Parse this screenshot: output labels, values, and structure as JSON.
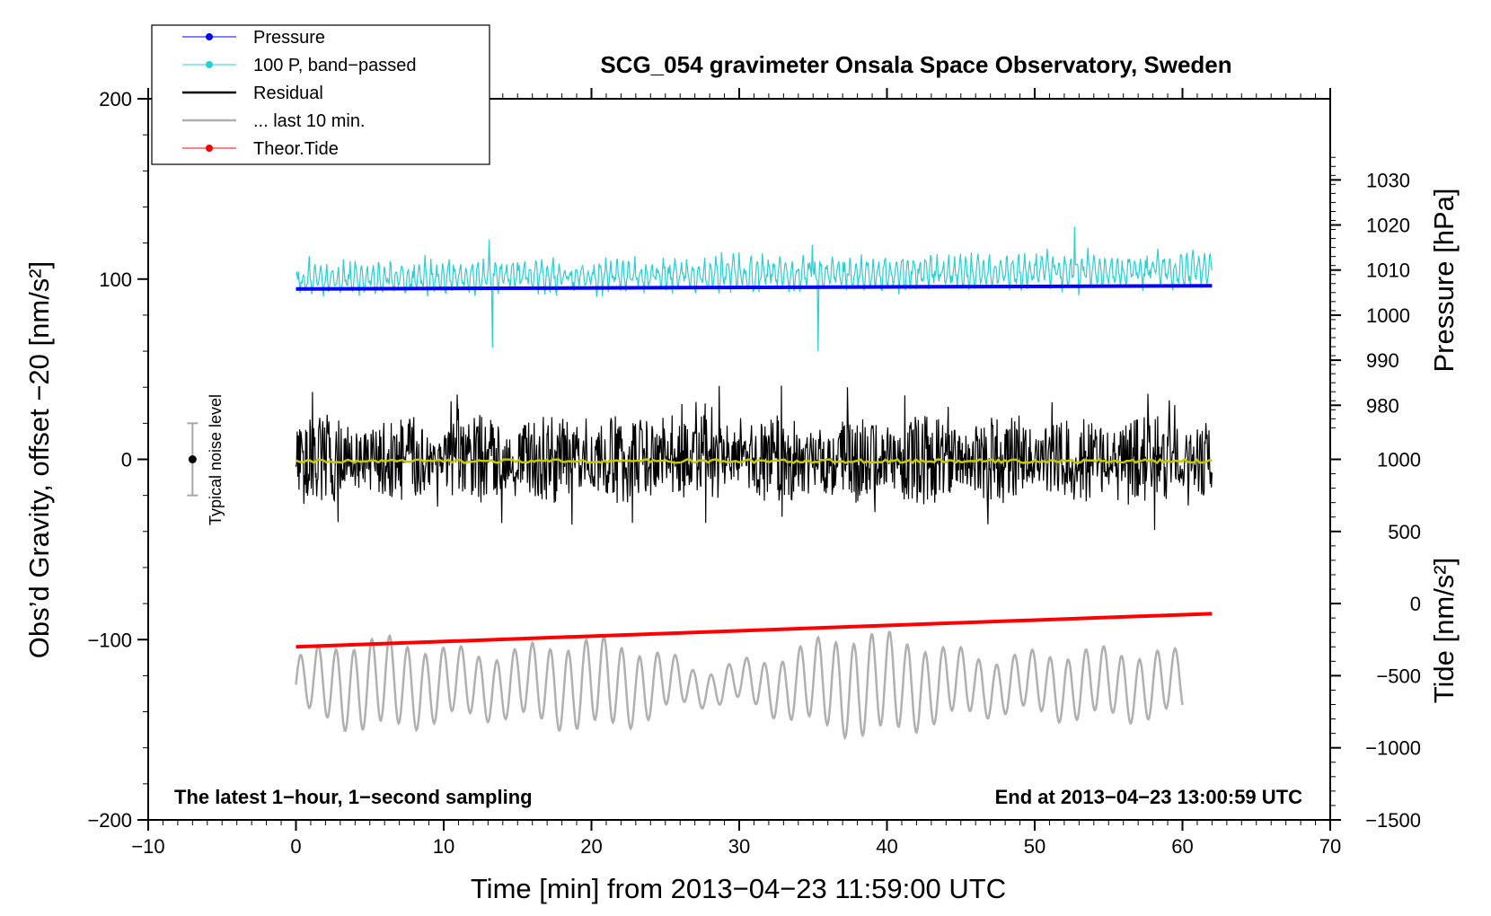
{
  "chart_data": {
    "type": "line",
    "title": "SCG_054 gravimeter Onsala Space Observatory, Sweden",
    "xlabel": "Time [min] from 2013−04−23 11:59:00 UTC",
    "ylabel_left": "Obs’d Gravity, offset −20 [nm/s²]",
    "ylabel_right_pressure": "Pressure [hPa]",
    "ylabel_right_tide": "Tide [nm/s²]",
    "xlim": [
      -10,
      70
    ],
    "ylim": [
      -200,
      200
    ],
    "x_ticks": [
      "−10",
      "0",
      "10",
      "20",
      "30",
      "40",
      "50",
      "60",
      "70"
    ],
    "y_ticks_left": [
      "−200",
      "−100",
      "0",
      "100",
      "200"
    ],
    "y_ticks_pressure": [
      "980",
      "990",
      "1000",
      "1010",
      "1020",
      "1030"
    ],
    "y_ticks_tide": [
      "−1500",
      "−1000",
      "−500",
      "0",
      "500",
      "1000"
    ],
    "pressure_scale": {
      "hPa": [
        980,
        1030
      ],
      "left_equiv": [
        30,
        155
      ]
    },
    "tide_scale": {
      "nms2": [
        -1500,
        1000
      ],
      "left_equiv": [
        -200,
        0
      ]
    },
    "legend": [
      {
        "label": "Pressure",
        "color": "#0000ff"
      },
      {
        "label": "100 P, band−passed",
        "color": "#27d0d3"
      },
      {
        "label": "Residual",
        "color": "#000000"
      },
      {
        "label": "... last 10 min.",
        "color": "#b0b0b0"
      },
      {
        "label": "Theor.Tide",
        "color": "#ff0000"
      }
    ],
    "series": [
      {
        "name": "Pressure",
        "color": "#0000ff",
        "x_range": [
          0,
          62
        ],
        "start_hPa": 1005.8,
        "end_hPa": 1006.5
      },
      {
        "name": "100 P, band−passed",
        "color": "#27d0d3",
        "x_range": [
          0,
          62
        ],
        "center": 100,
        "amplitude": 8
      },
      {
        "name": "Residual",
        "color": "#000000",
        "x_range": [
          0,
          62
        ],
        "center": 0,
        "amplitude": 25
      },
      {
        "name": "Residual smoothed",
        "color": "#c8c800",
        "x_range": [
          0,
          62
        ],
        "center": -1
      },
      {
        "name": "... last 10 min.",
        "color": "#b0b0b0",
        "x_range": [
          0,
          60
        ],
        "center": -125,
        "amplitude": 20
      },
      {
        "name": "Theor.Tide",
        "color": "#ff0000",
        "x_range": [
          0,
          62
        ],
        "start_nms2": -300,
        "end_nms2": -70
      }
    ],
    "noise_bar": {
      "x": -7,
      "center": 0,
      "low": -20,
      "high": 20,
      "label": "Typical noise level"
    },
    "annotation_left": "The latest 1−hour, 1−second sampling",
    "annotation_right": "End at 2013−04−23 13:00:59 UTC"
  }
}
